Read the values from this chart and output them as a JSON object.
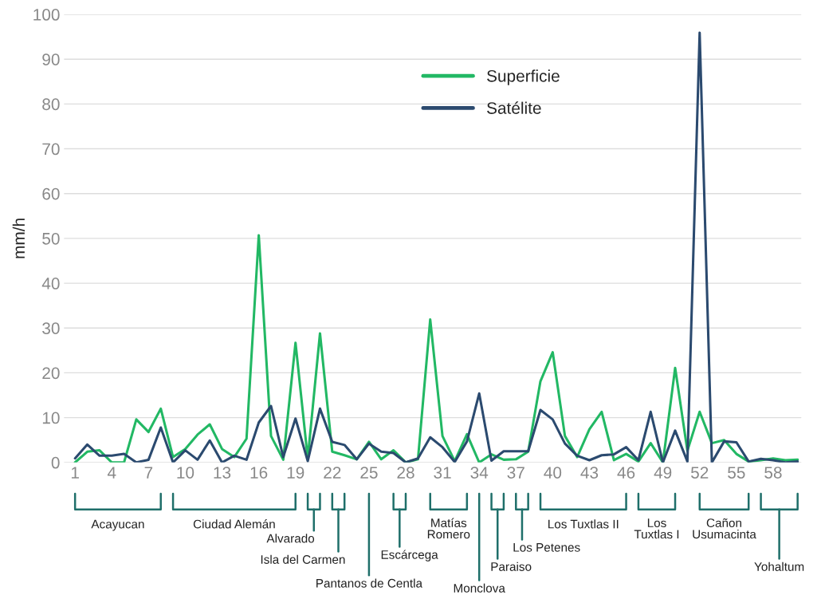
{
  "chart_data": {
    "type": "line",
    "ylabel": "mm/h",
    "x": [
      1,
      2,
      3,
      4,
      5,
      6,
      7,
      8,
      9,
      10,
      11,
      12,
      13,
      14,
      15,
      16,
      17,
      18,
      19,
      20,
      21,
      22,
      23,
      24,
      25,
      26,
      27,
      28,
      29,
      30,
      31,
      32,
      33,
      34,
      35,
      36,
      37,
      38,
      39,
      40,
      41,
      42,
      43,
      44,
      45,
      46,
      47,
      48,
      49,
      50,
      51,
      52,
      53,
      54,
      55,
      56,
      57,
      58,
      59,
      60
    ],
    "series": [
      {
        "name": "Superficie",
        "color": "#22b864",
        "values": [
          0,
          2.4,
          2.7,
          0,
          0,
          9.6,
          6.8,
          12,
          1.2,
          3,
          6.2,
          8.5,
          3,
          1.2,
          5.3,
          50.7,
          5.9,
          0.6,
          26.7,
          0.9,
          28.8,
          2.4,
          1.6,
          0.7,
          4.6,
          0.7,
          2.7,
          0,
          0.7,
          31.9,
          5.9,
          0.3,
          6.3,
          0,
          1.8,
          0.6,
          0.7,
          2.4,
          18.1,
          24.6,
          5.9,
          1.2,
          7.4,
          11.3,
          0.5,
          1.9,
          0.2,
          4.3,
          0,
          21.1,
          2.6,
          11.3,
          4.3,
          5,
          1.9,
          0.2,
          0.5,
          0.9,
          0.5,
          0.6
        ]
      },
      {
        "name": "Satélite",
        "color": "#2b4a6f",
        "values": [
          0.9,
          4,
          1.5,
          1.5,
          1.9,
          0,
          0.6,
          7.8,
          0,
          2.7,
          0.6,
          4.9,
          0,
          1.5,
          0.6,
          8.9,
          12.6,
          1.2,
          9.8,
          0.3,
          12,
          4.6,
          3.9,
          0.7,
          4.2,
          2.4,
          2.1,
          0,
          0.9,
          5.6,
          3.4,
          0.1,
          4.7,
          15.4,
          0.4,
          2.5,
          2.5,
          2.5,
          11.7,
          9.6,
          4.2,
          1.5,
          0.5,
          1.6,
          1.8,
          3.4,
          0.5,
          11.3,
          0,
          7.1,
          0.2,
          95.9,
          0,
          4.7,
          4.5,
          0.2,
          0.8,
          0.5,
          0,
          0.2
        ]
      }
    ],
    "xlim": [
      0.1,
      60.3
    ],
    "xticks": [
      1,
      4,
      7,
      10,
      13,
      16,
      19,
      22,
      25,
      28,
      31,
      34,
      37,
      40,
      43,
      46,
      49,
      52,
      55,
      58
    ],
    "ylim": [
      0,
      100
    ],
    "yticks": [
      0,
      10,
      20,
      30,
      40,
      50,
      60,
      70,
      80,
      90,
      100
    ],
    "grid": "y",
    "legend": "top",
    "annotations": [
      "Acayucan",
      "Ciudad Alemán",
      "Alvarado",
      "Isla del Carmen",
      "Pantanos de Centla",
      "Escárcega",
      "Matías\nRomero",
      "Monclova",
      "Paraiso",
      "Los Petenes",
      "Los Tuxtlas II",
      "Los\nTuxtlas I",
      "Cañon\nUsumacinta",
      "Yohaltum"
    ]
  }
}
